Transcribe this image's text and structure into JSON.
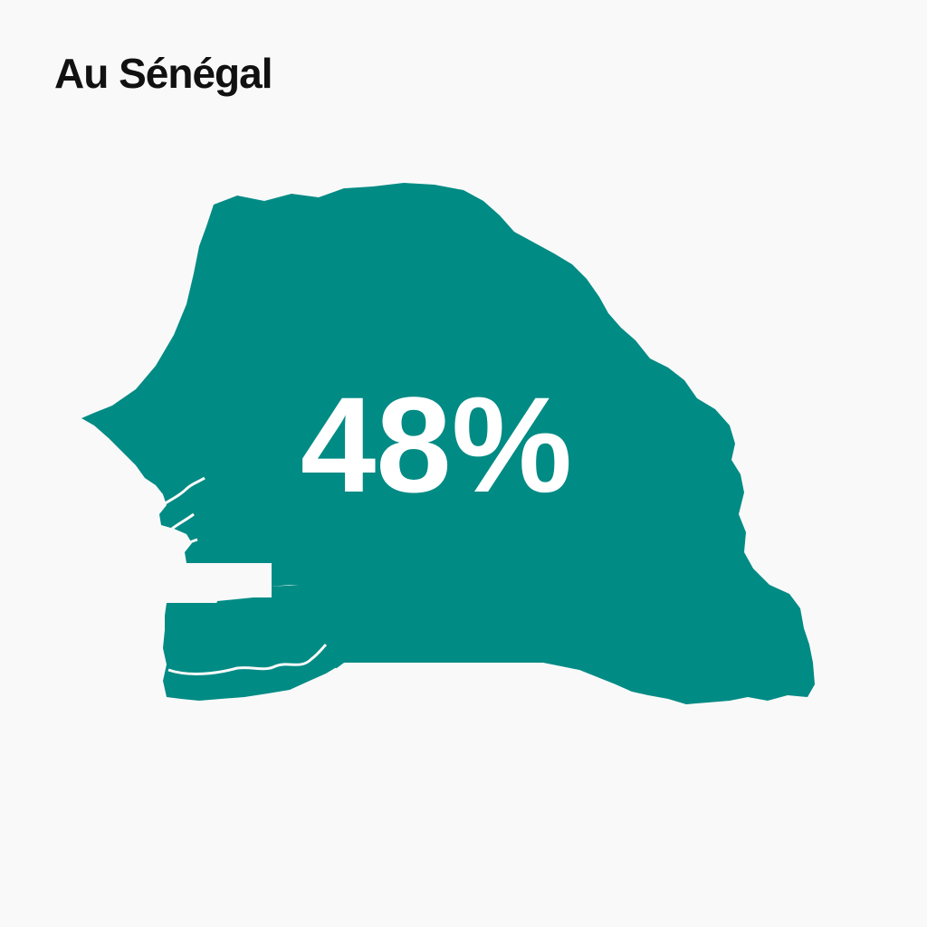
{
  "title": "Au Sénégal",
  "stat": {
    "value": "48%"
  },
  "colors": {
    "map_fill": "#008b84",
    "background": "#f9f9f9",
    "title": "#111111",
    "stat_text": "#ffffff"
  }
}
